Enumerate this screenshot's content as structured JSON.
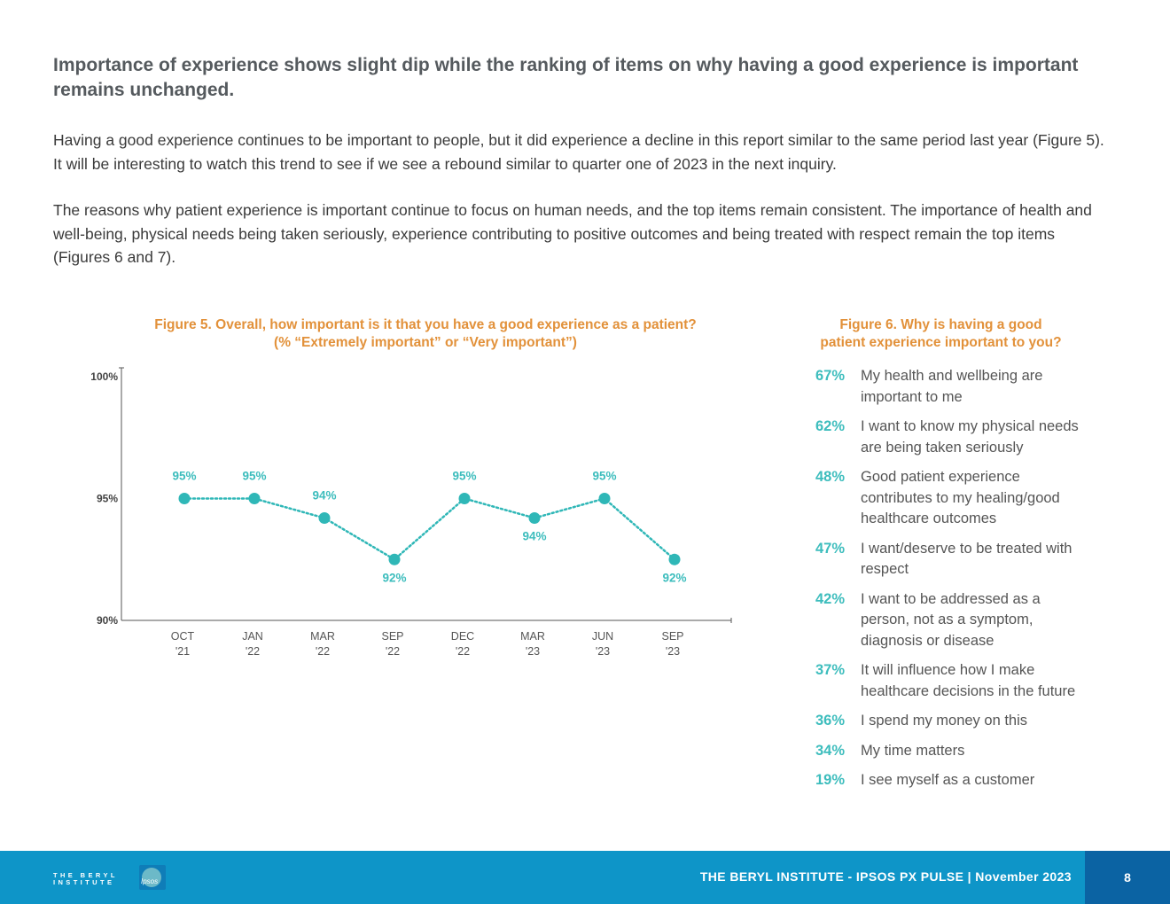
{
  "heading": "Importance of experience shows slight dip while the ranking of items on why having a good experience is important remains unchanged.",
  "paragraphs": [
    "Having a good experience continues to be important to people, but it did experience a decline in this report similar to the same period last year (Figure 5). It will be interesting to watch this trend to see if we see a rebound similar to quarter one of 2023 in the next inquiry.",
    "The reasons why patient experience is important continue to focus on human needs, and the top items remain consistent. The importance of health and well-being, physical needs being taken seriously, experience contributing to positive outcomes and being treated with respect remain the top items (Figures 6 and 7)."
  ],
  "figure5": {
    "title_line1": "Figure 5. Overall, how important is it that you have a good experience as a patient?",
    "title_line2": "(% “Extremely important” or “Very important”)"
  },
  "chart_data": {
    "type": "line",
    "title": "Figure 5. Overall, how important is it that you have a good experience as a patient? (% “Extremely important” or “Very important”)",
    "categories": [
      [
        "OCT",
        "'21"
      ],
      [
        "JAN",
        "'22"
      ],
      [
        "MAR",
        "'22"
      ],
      [
        "SEP",
        "'22"
      ],
      [
        "DEC",
        "'22"
      ],
      [
        "MAR",
        "'23"
      ],
      [
        "JUN",
        "'23"
      ],
      [
        "SEP",
        "'23"
      ]
    ],
    "series": [
      {
        "name": "Extremely/Very important",
        "values": [
          95,
          95,
          94.2,
          92.5,
          95,
          94.2,
          95,
          92.5
        ]
      }
    ],
    "data_labels": [
      "95%",
      "95%",
      "94%",
      "92%",
      "95%",
      "94%",
      "95%",
      "92%"
    ],
    "label_positions": [
      "above",
      "above",
      "above",
      "below",
      "above",
      "below",
      "above",
      "below"
    ],
    "ylim": [
      90,
      100
    ],
    "yticks": [
      90,
      95,
      100
    ],
    "ytick_labels": [
      "90%",
      "95%",
      "100%"
    ],
    "xlabel": "",
    "ylabel": "",
    "color": "#2fb7b7"
  },
  "figure6": {
    "title_line1": "Figure 6. Why is having a good",
    "title_line2": "patient experience important to you?",
    "items": [
      {
        "pct": "67%",
        "text": "My health and wellbeing are important to me"
      },
      {
        "pct": "62%",
        "text": "I want to know my physical needs are being taken seriously"
      },
      {
        "pct": "48%",
        "text": "Good patient experience contributes to my healing/good healthcare outcomes"
      },
      {
        "pct": "47%",
        "text": "I want/deserve to be treated with respect"
      },
      {
        "pct": "42%",
        "text": "I want to be addressed as a person, not as a symptom, diagnosis or disease"
      },
      {
        "pct": "37%",
        "text": "It will influence how I make healthcare decisions in the future"
      },
      {
        "pct": "36%",
        "text": "I spend my money on this"
      },
      {
        "pct": "34%",
        "text": "My time matters"
      },
      {
        "pct": "19%",
        "text": "I see myself as a customer"
      }
    ]
  },
  "footer": {
    "text": "THE BERYL INSTITUTE - IPSOS PX PULSE | November 2023",
    "page": "8",
    "logo_line1": "THE BERYL",
    "logo_line2": "INSTITUTE",
    "ipsos_logo": "Ipsos"
  },
  "colors": {
    "accent_orange": "#e2913a",
    "teal": "#3dbdbd",
    "footer_blue": "#0e95c8",
    "page_box_blue": "#0b63a3"
  }
}
